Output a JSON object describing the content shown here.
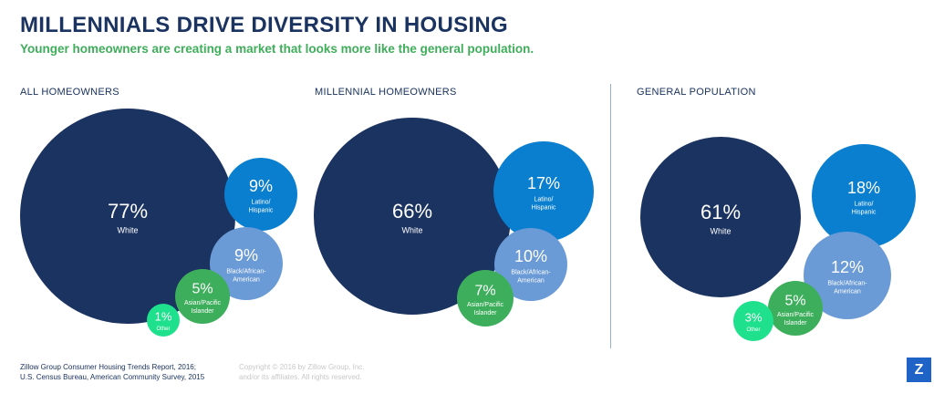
{
  "header": {
    "title": "MILLENNIALS DRIVE DIVERSITY IN HOUSING",
    "subtitle": "Younger homeowners are creating a market that looks more like the general population."
  },
  "chart_data": [
    {
      "type": "bubble",
      "title": "ALL HOMEOWNERS",
      "slices": [
        {
          "label": "White",
          "value": 77,
          "color": "#1b3360"
        },
        {
          "label": "Latino/ Hispanic",
          "value": 9,
          "color": "#0a7fcf"
        },
        {
          "label": "Black/African- American",
          "value": 9,
          "color": "#6b9bd6"
        },
        {
          "label": "Asian/Pacific Islander",
          "value": 5,
          "color": "#3dae5b"
        },
        {
          "label": "Other",
          "value": 1,
          "color": "#1fe08c"
        }
      ]
    },
    {
      "type": "bubble",
      "title": "MILLENNIAL HOMEOWNERS",
      "slices": [
        {
          "label": "White",
          "value": 66,
          "color": "#1b3360"
        },
        {
          "label": "Latino/ Hispanic",
          "value": 17,
          "color": "#0a7fcf"
        },
        {
          "label": "Black/African- American",
          "value": 10,
          "color": "#6b9bd6"
        },
        {
          "label": "Asian/Pacific Islander",
          "value": 7,
          "color": "#3dae5b"
        }
      ]
    },
    {
      "type": "bubble",
      "title": "GENERAL POPULATION",
      "slices": [
        {
          "label": "White",
          "value": 61,
          "color": "#1b3360"
        },
        {
          "label": "Latino/ Hispanic",
          "value": 18,
          "color": "#0a7fcf"
        },
        {
          "label": "Black/African- American",
          "value": 12,
          "color": "#6b9bd6"
        },
        {
          "label": "Asian/Pacific Islander",
          "value": 5,
          "color": "#3dae5b"
        },
        {
          "label": "Other",
          "value": 3,
          "color": "#1fe08c"
        }
      ]
    }
  ],
  "footer": {
    "source_line1": "Zillow Group Consumer Housing Trends Report, 2016;",
    "source_line2": "U.S. Census Bureau, American Community Survey, 2015",
    "copyright_line1": "Copyright © 2016 by Zillow Group, Inc.",
    "copyright_line2": "and/or its affiliates. All rights reserved.",
    "logo": "Z"
  }
}
